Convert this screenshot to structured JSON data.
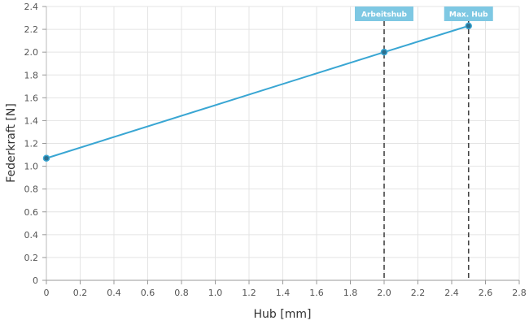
{
  "chart_data": {
    "type": "line",
    "xlabel": "Hub [mm]",
    "ylabel": "Federkraft [N]",
    "xlim": [
      0,
      2.8
    ],
    "ylim": [
      0,
      2.4
    ],
    "x_ticks": [
      "0",
      "0.2",
      "0.4",
      "0.6",
      "0.8",
      "1.0",
      "1.2",
      "1.4",
      "1.6",
      "1.8",
      "2.0",
      "2.2",
      "2.4",
      "2.6",
      "2.8"
    ],
    "y_ticks": [
      "0",
      "0.2",
      "0.4",
      "0.6",
      "0.8",
      "1.0",
      "1.2",
      "1.4",
      "1.6",
      "1.8",
      "2.0",
      "2.2",
      "2.4"
    ],
    "grid": true,
    "series": [
      {
        "color": "#39a6d3",
        "x": [
          0,
          2.0,
          2.5
        ],
        "y": [
          1.07,
          2.0,
          2.23
        ]
      }
    ],
    "markers": [
      {
        "label": "Arbeitshub",
        "x": 2.0,
        "color": "#7ec8e3"
      },
      {
        "label": "Max. Hub",
        "x": 2.5,
        "color": "#7ec8e3"
      }
    ]
  }
}
